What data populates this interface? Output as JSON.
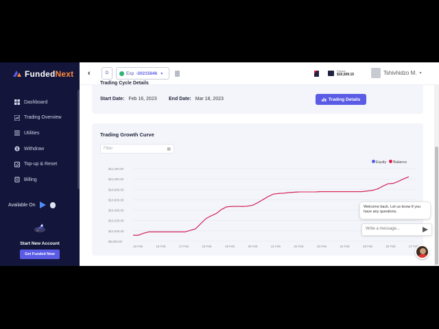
{
  "brand": {
    "name_main": "Funded",
    "name_accent": "Next",
    "accent_color": "#ff8a3d"
  },
  "sidebar": {
    "items": [
      {
        "label": "Dashboard",
        "icon": "grid-icon"
      },
      {
        "label": "Trading Overview",
        "icon": "chart-icon"
      },
      {
        "label": "Utilities",
        "icon": "list-icon"
      },
      {
        "label": "Withdraw",
        "icon": "dollar-icon"
      },
      {
        "label": "Top-up & Reset",
        "icon": "refresh-icon"
      },
      {
        "label": "Billing",
        "icon": "receipt-icon"
      }
    ],
    "available_on": "Available On",
    "promo_title": "Start New Account",
    "promo_button": "Get Funded Now"
  },
  "header": {
    "account_short": "D",
    "account_label": "Exp",
    "account_number": "-20215646",
    "wallet_caption": "Payout",
    "wallet_value": "$10,509.15",
    "user_name": "Tshivhidzo M."
  },
  "trading_card": {
    "title": "Trading Cycle Details",
    "start_label": "Start Date:",
    "start_value": "Feb 16, 2023",
    "end_label": "End Date:",
    "end_value": "Mar 18, 2023",
    "button_label": "Trading Details"
  },
  "growth_card": {
    "title": "Trading Growth Curve",
    "filter_placeholder": "Filter"
  },
  "chart_data": {
    "type": "line",
    "title": "Trading Growth Curve",
    "series": [
      {
        "name": "Equity",
        "color": "#5b5ce6",
        "values": [
          10000,
          10000,
          10065,
          10110,
          10110,
          10110,
          10110,
          10110,
          10110,
          10110,
          10110,
          10160,
          10210,
          10380,
          10550,
          10640,
          10720,
          10850,
          10940,
          10950,
          10955,
          10950,
          10960,
          10990,
          11080,
          11180,
          11280,
          11360,
          11380,
          11390,
          11410,
          11420,
          11430,
          11430,
          11430,
          11430,
          11440,
          11440,
          11440,
          11440,
          11440,
          11440,
          11440,
          11440,
          11440,
          11460,
          11480,
          11530,
          11620,
          11700,
          11710,
          11780,
          11860,
          11930
        ]
      },
      {
        "name": "Balance",
        "color": "#e11d48",
        "values": [
          10000,
          10000,
          10065,
          10110,
          10110,
          10110,
          10110,
          10110,
          10110,
          10110,
          10110,
          10160,
          10210,
          10380,
          10550,
          10640,
          10720,
          10850,
          10940,
          10950,
          10955,
          10950,
          10960,
          10990,
          11080,
          11180,
          11280,
          11360,
          11380,
          11390,
          11410,
          11420,
          11430,
          11430,
          11430,
          11430,
          11440,
          11440,
          11440,
          11440,
          11440,
          11440,
          11440,
          11440,
          11440,
          11460,
          11480,
          11530,
          11620,
          11700,
          11710,
          11780,
          11860,
          11930
        ]
      }
    ],
    "x_ticks": [
      "15 Feb",
      "16 Feb",
      "17 Feb",
      "18 Feb",
      "19 Feb",
      "20 Feb",
      "21 Feb",
      "22 Feb",
      "23 Feb",
      "24 Feb",
      "25 Feb",
      "26 Feb",
      "27 Feb"
    ],
    "y_ticks": [
      "$9,800.00",
      "$10,000.00",
      "$10,200.00",
      "$10,400.00",
      "$10,600.00",
      "$10,800.00",
      "$11,000.00",
      "$11,200.00"
    ],
    "ylim": [
      9800,
      12200
    ],
    "grid": true,
    "legend": "top-right"
  },
  "chat": {
    "greeting": "Welcome back. Let us know if you have any questions.",
    "input_placeholder": "Write a message..."
  }
}
